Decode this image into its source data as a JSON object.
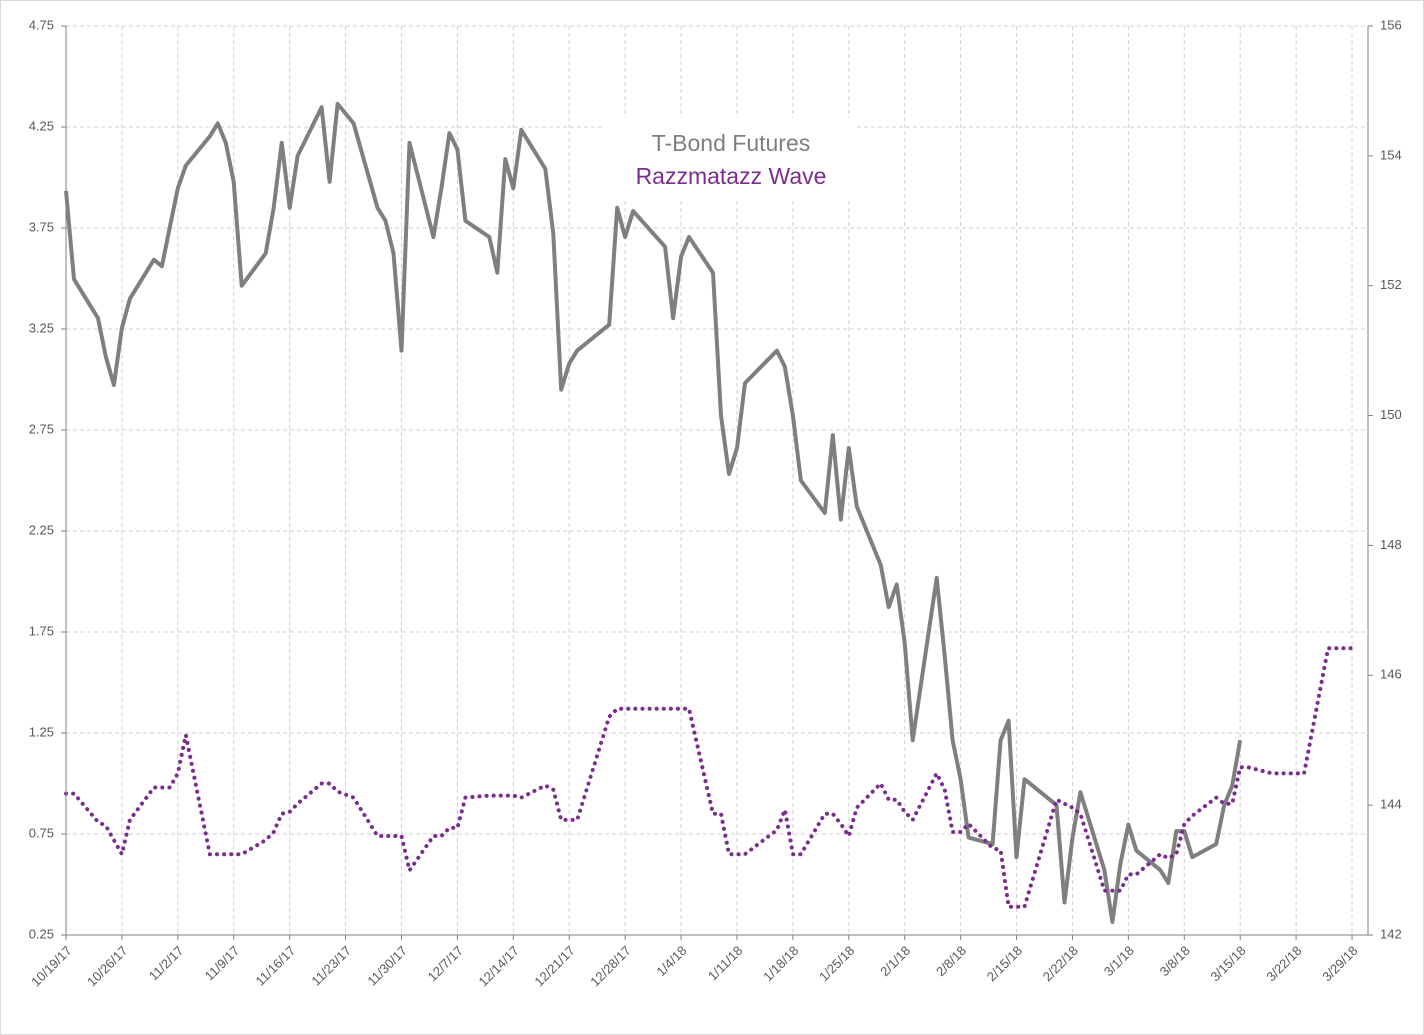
{
  "chart_data": {
    "type": "line",
    "x": [
      "10/19/17",
      "10/20/17",
      "10/23/17",
      "10/24/17",
      "10/25/17",
      "10/26/17",
      "10/27/17",
      "10/30/17",
      "10/31/17",
      "11/1/17",
      "11/2/17",
      "11/3/17",
      "11/6/17",
      "11/7/17",
      "11/8/17",
      "11/9/17",
      "11/10/17",
      "11/13/17",
      "11/14/17",
      "11/15/17",
      "11/16/17",
      "11/17/17",
      "11/20/17",
      "11/21/17",
      "11/22/17",
      "11/24/17",
      "11/27/17",
      "11/28/17",
      "11/29/17",
      "11/30/17",
      "12/1/17",
      "12/4/17",
      "12/5/17",
      "12/6/17",
      "12/7/17",
      "12/8/17",
      "12/11/17",
      "12/12/17",
      "12/13/17",
      "12/14/17",
      "12/15/17",
      "12/18/17",
      "12/19/17",
      "12/20/17",
      "12/21/17",
      "12/22/17",
      "12/26/17",
      "12/27/17",
      "12/28/17",
      "12/29/17",
      "1/2/18",
      "1/3/18",
      "1/4/18",
      "1/5/18",
      "1/8/18",
      "1/9/18",
      "1/10/18",
      "1/11/18",
      "1/12/18",
      "1/16/18",
      "1/17/18",
      "1/18/18",
      "1/19/18",
      "1/22/18",
      "1/23/18",
      "1/24/18",
      "1/25/18",
      "1/26/18",
      "1/29/18",
      "1/30/18",
      "1/31/18",
      "2/1/18",
      "2/2/18",
      "2/5/18",
      "2/6/18",
      "2/7/18",
      "2/8/18",
      "2/9/18",
      "2/12/18",
      "2/13/18",
      "2/14/18",
      "2/15/18",
      "2/16/18",
      "2/20/18",
      "2/21/18",
      "2/22/18",
      "2/23/18",
      "2/26/18",
      "2/27/18",
      "2/28/18",
      "3/1/18",
      "3/2/18",
      "3/5/18",
      "3/6/18",
      "3/7/18",
      "3/8/18",
      "3/9/18",
      "3/12/18",
      "3/13/18",
      "3/14/18",
      "3/15/18",
      "3/16/18",
      "3/19/18",
      "3/20/18",
      "3/21/18",
      "3/22/18",
      "3/23/18",
      "3/26/18",
      "3/27/18",
      "3/28/18",
      "3/29/18"
    ],
    "series": [
      {
        "name": "T-Bond Futures",
        "color": "#7f7f7f",
        "axis": "y2",
        "style": "solid",
        "values": [
          153.46,
          152.1,
          151.5,
          150.9,
          150.47,
          151.35,
          151.8,
          152.4,
          152.3,
          152.9,
          153.5,
          153.85,
          154.3,
          154.5,
          154.2,
          153.6,
          152.0,
          152.5,
          153.2,
          154.2,
          153.2,
          154.0,
          154.75,
          153.6,
          154.8,
          154.5,
          153.2,
          153.0,
          152.5,
          151.0,
          154.2,
          152.75,
          153.5,
          154.35,
          154.1,
          153.0,
          152.75,
          152.2,
          153.95,
          153.5,
          154.4,
          153.8,
          152.8,
          150.4,
          150.8,
          151.0,
          151.4,
          153.2,
          152.75,
          153.15,
          152.6,
          151.5,
          152.45,
          152.75,
          152.2,
          150.0,
          149.1,
          149.5,
          150.5,
          151.0,
          150.75,
          150.0,
          149.0,
          148.5,
          149.7,
          148.4,
          149.5,
          148.6,
          147.7,
          147.05,
          147.4,
          146.5,
          145.0,
          147.5,
          146.3,
          145.0,
          144.4,
          143.5,
          143.4,
          145.0,
          145.3,
          143.2,
          144.4,
          144.0,
          142.5,
          143.5,
          144.2,
          143.0,
          142.2,
          143.1,
          143.7,
          143.3,
          143.0,
          142.8,
          143.6,
          143.6,
          143.2,
          143.4,
          144.0,
          144.3,
          145.0,
          null,
          null,
          null,
          null,
          null,
          null,
          null,
          null,
          null,
          null
        ]
      },
      {
        "name": "Razzmatazz Wave",
        "color": "#7b2d8e",
        "axis": "y",
        "style": "dotted",
        "values": [
          0.95,
          0.95,
          0.81,
          0.79,
          0.72,
          0.65,
          0.82,
          0.98,
          0.98,
          0.98,
          1.05,
          1.24,
          0.65,
          0.65,
          0.65,
          0.65,
          0.65,
          0.72,
          0.76,
          0.85,
          0.86,
          0.9,
          1.0,
          1.0,
          0.96,
          0.93,
          0.74,
          0.74,
          0.74,
          0.74,
          0.57,
          0.74,
          0.74,
          0.78,
          0.78,
          0.93,
          0.94,
          0.94,
          0.94,
          0.94,
          0.93,
          0.99,
          0.97,
          0.82,
          0.82,
          0.82,
          1.33,
          1.37,
          1.37,
          1.37,
          1.37,
          1.37,
          1.37,
          1.37,
          0.85,
          0.85,
          0.65,
          0.65,
          0.65,
          0.77,
          0.87,
          0.65,
          0.65,
          0.85,
          0.85,
          0.8,
          0.74,
          0.88,
          1.0,
          0.92,
          0.92,
          0.86,
          0.82,
          1.05,
          0.97,
          0.76,
          0.76,
          0.8,
          0.68,
          0.67,
          0.39,
          0.39,
          0.39,
          0.92,
          0.9,
          0.88,
          0.85,
          0.47,
          0.47,
          0.47,
          0.55,
          0.55,
          0.65,
          0.63,
          0.65,
          0.8,
          0.84,
          0.93,
          0.9,
          0.9,
          1.08,
          1.08,
          1.05,
          1.05,
          1.05,
          1.05,
          1.05,
          1.67,
          1.67,
          1.67,
          1.67
        ]
      }
    ],
    "xlim": [
      "10/19/17",
      "3/31/18"
    ],
    "xticks": [
      "10/19/17",
      "10/26/17",
      "11/2/17",
      "11/9/17",
      "11/16/17",
      "11/23/17",
      "11/30/17",
      "12/7/17",
      "12/14/17",
      "12/21/17",
      "12/28/17",
      "1/4/18",
      "1/11/18",
      "1/18/18",
      "1/25/18",
      "2/1/18",
      "2/8/18",
      "2/15/18",
      "2/22/18",
      "3/1/18",
      "3/8/18",
      "3/15/18",
      "3/22/18",
      "3/29/18"
    ],
    "ylim": [
      0.25,
      4.75
    ],
    "yticks": [
      0.25,
      0.75,
      1.25,
      1.75,
      2.25,
      2.75,
      3.25,
      3.75,
      4.25,
      4.75
    ],
    "y2lim": [
      142,
      156
    ],
    "y2ticks": [
      142,
      144,
      146,
      148,
      150,
      152,
      154,
      156
    ],
    "grid": true
  }
}
